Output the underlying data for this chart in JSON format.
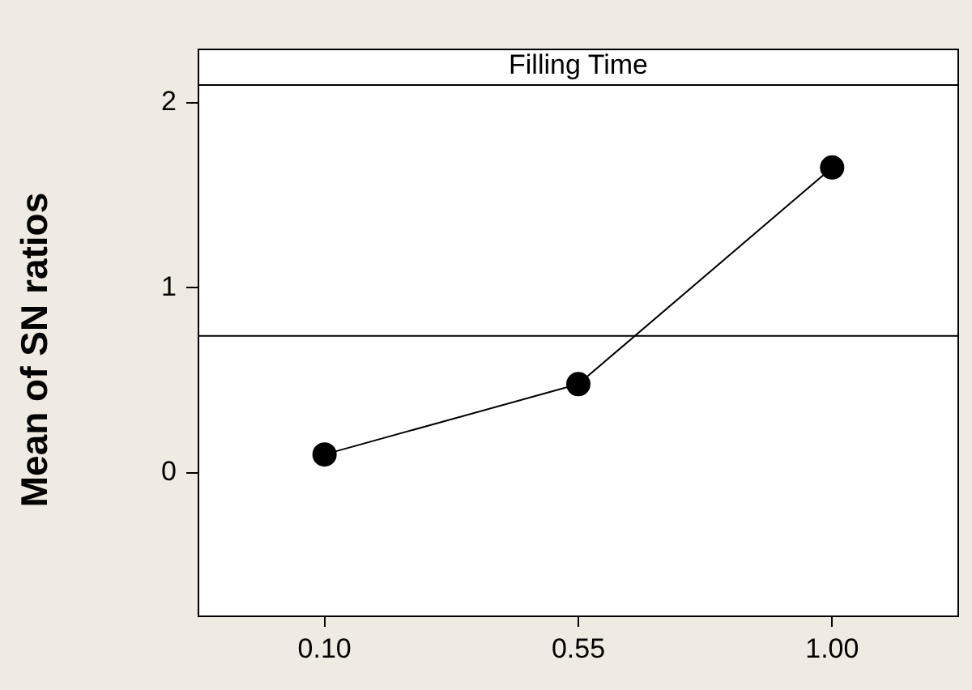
{
  "chart_data": {
    "type": "line",
    "title": "Filling Time",
    "ylabel": "Mean of SN ratios",
    "categories": [
      "0.10",
      "0.55",
      "1.00"
    ],
    "series": [
      {
        "color": "#000000",
        "values": [
          0.1,
          0.48,
          1.65
        ]
      }
    ],
    "ylim": [
      -0.77,
      2.1
    ],
    "yticks": [
      0,
      1,
      2
    ],
    "grid": false,
    "legend": false,
    "marker": "circle",
    "line_style": "solid",
    "ref_lines": [
      {
        "axis": "y",
        "value": 0.74,
        "color": "#000000"
      }
    ]
  }
}
